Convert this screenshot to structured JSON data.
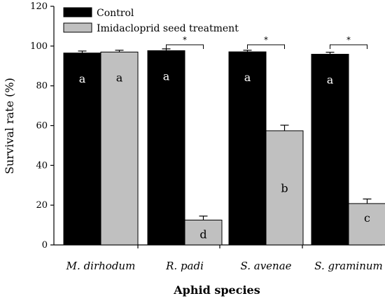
{
  "chart_data": {
    "type": "bar",
    "title": "",
    "xlabel": "Aphid species",
    "ylabel": "Survival rate (%)",
    "ylim": [
      0,
      120
    ],
    "yticks": [
      "0",
      "20",
      "40",
      "60",
      "80",
      "100",
      "120"
    ],
    "categories": [
      "M. dirhodum",
      "R. padi",
      "S. avenae",
      "S. graminum"
    ],
    "series": [
      {
        "name": "Control",
        "color": "#000000",
        "values": [
          96.5,
          97.7,
          97.1,
          95.9
        ],
        "errors": [
          1.0,
          0.9,
          0.8,
          1.0
        ],
        "letters": [
          "a",
          "a",
          "a",
          "a"
        ]
      },
      {
        "name": "Imidacloprid seed treatment",
        "color": "#c0c0c0",
        "values": [
          97.0,
          12.5,
          57.4,
          20.8
        ],
        "errors": [
          0.9,
          2.0,
          2.8,
          2.3
        ],
        "letters": [
          "a",
          "d",
          "b",
          "c"
        ]
      }
    ],
    "significance": [
      "",
      "*",
      "*",
      "*"
    ],
    "legend_position": "top-left",
    "grid": false
  }
}
